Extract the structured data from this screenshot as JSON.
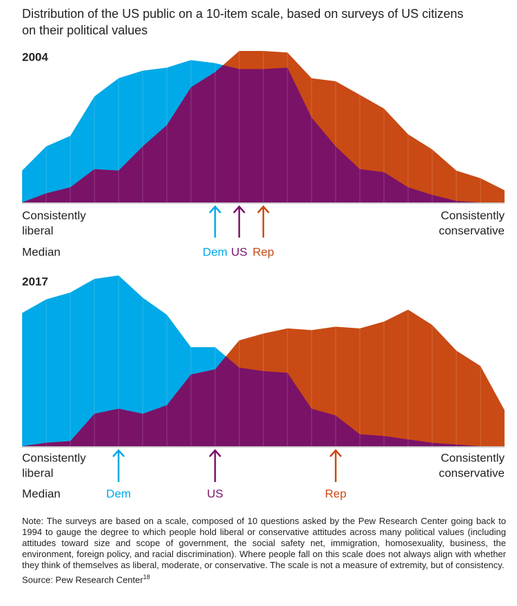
{
  "title": "Distribution of the US public on a 10-item scale, based on surveys of US citizens on their political values",
  "chart_data": [
    {
      "type": "area",
      "title": "2004",
      "x": [
        0,
        1,
        2,
        3,
        4,
        5,
        6,
        7,
        8,
        9,
        10,
        11,
        12,
        13,
        14,
        15,
        16,
        17,
        18,
        19,
        20
      ],
      "xlim": [
        0,
        20
      ],
      "ylim": [
        0,
        100
      ],
      "grid": true,
      "left_label": [
        "Consistently",
        "liberal"
      ],
      "right_label": [
        "Consistently",
        "conservative"
      ],
      "overlap_color": "#7a1268",
      "series": [
        {
          "name": "Dem",
          "color": "#00a9e8",
          "values": [
            21,
            37,
            44,
            70,
            82,
            87,
            89,
            94,
            92,
            88,
            88,
            89,
            56,
            37,
            22,
            20,
            10,
            5,
            1,
            0,
            0
          ]
        },
        {
          "name": "Rep",
          "color": "#c94a14",
          "values": [
            0,
            6,
            10,
            22,
            21,
            37,
            51,
            76,
            86,
            100,
            100,
            99,
            82,
            80,
            71,
            62,
            45,
            35,
            21,
            16,
            8
          ]
        }
      ],
      "median_label": "Median",
      "medians": [
        {
          "name": "Dem",
          "color": "#00a9e8",
          "x": 8
        },
        {
          "name": "US",
          "color": "#7a1268",
          "x": 9
        },
        {
          "name": "Rep",
          "color": "#c94a14",
          "x": 10
        }
      ]
    },
    {
      "type": "area",
      "title": "2017",
      "x": [
        0,
        1,
        2,
        3,
        4,
        5,
        6,
        7,
        8,
        9,
        10,
        11,
        12,
        13,
        14,
        15,
        16,
        17,
        18,
        19,
        20
      ],
      "xlim": [
        0,
        20
      ],
      "ylim": [
        0,
        100
      ],
      "grid": true,
      "left_label": [
        "Consistently",
        "liberal"
      ],
      "right_label": [
        "Consistently",
        "conservative"
      ],
      "overlap_color": "#7a1268",
      "series": [
        {
          "name": "Dem",
          "color": "#00a9e8",
          "values": [
            78,
            86,
            90,
            98,
            100,
            87,
            77,
            58,
            58,
            46,
            44,
            43,
            22,
            18,
            7,
            6,
            4,
            2,
            1,
            0,
            0
          ]
        },
        {
          "name": "Rep",
          "color": "#c94a14",
          "values": [
            0,
            2,
            3,
            19,
            22,
            19,
            24,
            42,
            45,
            62,
            66,
            69,
            68,
            70,
            69,
            73,
            80,
            71,
            56,
            47,
            21
          ]
        }
      ],
      "median_label": "Median",
      "medians": [
        {
          "name": "Dem",
          "color": "#00a9e8",
          "x": 4
        },
        {
          "name": "US",
          "color": "#7a1268",
          "x": 8
        },
        {
          "name": "Rep",
          "color": "#c94a14",
          "x": 13
        }
      ]
    }
  ],
  "note": "Note: The surveys are based on a scale, composed of 10 questions asked by the Pew Research Center going back to 1994 to gauge the degree to which people hold liberal or conservative attitudes across many political values (including attitudes toward size and scope of government, the social safety net, immigration, homosexuality, business, the environment, foreign policy, and racial discrimination). Where people fall on this scale does not always align with whether they think of themselves as liberal, moderate, or conservative. The scale is not a measure of extremity, but of consistency.",
  "source": "Source: Pew Research Center",
  "source_ref": "18"
}
